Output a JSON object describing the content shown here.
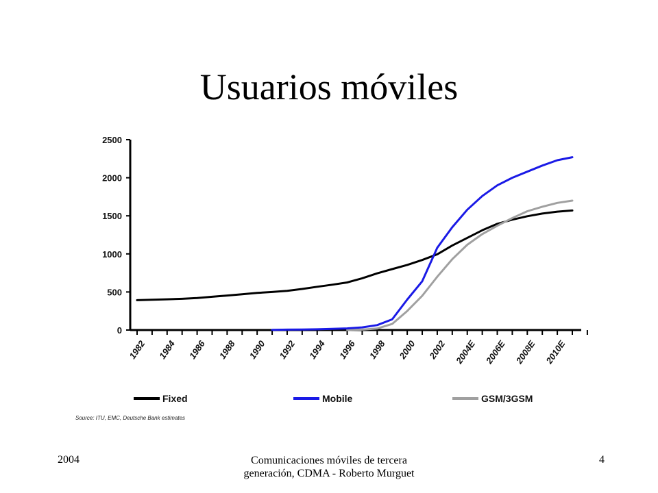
{
  "slide": {
    "title": "Usuarios móviles",
    "source": "Source: ITU, EMC, Deutsche Bank estimates",
    "footer_left": "2004",
    "footer_center": "Comunicaciones móviles de tercera generación, CDMA - Roberto Murguet",
    "footer_right": "4"
  },
  "chart_data": {
    "type": "line",
    "title": "",
    "xlabel": "",
    "ylabel": "",
    "ylim": [
      0,
      2500
    ],
    "yticks": [
      0,
      500,
      1000,
      1500,
      2000,
      2500
    ],
    "x_tick_labels": [
      "1982",
      "1984",
      "1986",
      "1988",
      "1990",
      "1992",
      "1994",
      "1996",
      "1998",
      "2000",
      "2002",
      "2004E",
      "2006E",
      "2008E",
      "2010E"
    ],
    "x": [
      1982,
      1983,
      1984,
      1985,
      1986,
      1987,
      1988,
      1989,
      1990,
      1991,
      1992,
      1993,
      1994,
      1995,
      1996,
      1997,
      1998,
      1999,
      2000,
      2001,
      2002,
      2003,
      2004,
      2005,
      2006,
      2007,
      2008,
      2009,
      2010,
      2011
    ],
    "xlim": [
      1982,
      2011
    ],
    "grid": false,
    "legend_position": "bottom",
    "series": [
      {
        "name": "Fixed",
        "color": "#000000",
        "values": [
          392,
          398,
          404,
          410,
          420,
          437,
          453,
          470,
          487,
          500,
          515,
          540,
          568,
          595,
          625,
          680,
          745,
          800,
          855,
          920,
          995,
          1110,
          1210,
          1310,
          1395,
          1450,
          1495,
          1530,
          1555,
          1570
        ]
      },
      {
        "name": "Mobile",
        "color": "#1a1ae6",
        "values": [
          null,
          null,
          null,
          null,
          null,
          null,
          null,
          null,
          null,
          3,
          5,
          7,
          10,
          15,
          22,
          35,
          65,
          140,
          400,
          640,
          1080,
          1350,
          1580,
          1760,
          1900,
          2000,
          2080,
          2160,
          2230,
          2270
        ]
      },
      {
        "name": "GSM/3GSM",
        "color": "#a0a0a0",
        "values": [
          null,
          null,
          null,
          null,
          null,
          null,
          null,
          null,
          null,
          null,
          null,
          null,
          null,
          null,
          0,
          5,
          20,
          80,
          250,
          450,
          700,
          930,
          1120,
          1260,
          1370,
          1470,
          1560,
          1620,
          1670,
          1700
        ]
      }
    ]
  }
}
